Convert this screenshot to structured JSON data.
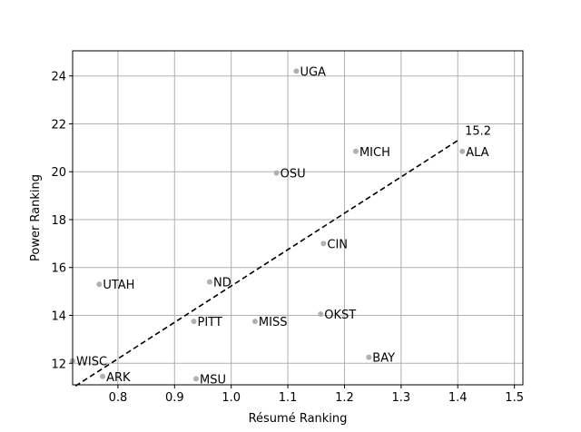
{
  "chart_data": {
    "type": "scatter",
    "title": "",
    "xlabel": "Résumé Ranking",
    "ylabel": "Power Ranking",
    "xlim": [
      0.72,
      1.515
    ],
    "ylim": [
      11.1,
      25.05
    ],
    "x_ticks": [
      0.8,
      0.9,
      1.0,
      1.1,
      1.2,
      1.3,
      1.4,
      1.5
    ],
    "x_tick_labels": [
      "0.8",
      "0.9",
      "1.0",
      "1.1",
      "1.2",
      "1.3",
      "1.4",
      "1.5"
    ],
    "y_ticks": [
      12,
      14,
      16,
      18,
      20,
      22,
      24
    ],
    "y_tick_labels": [
      "12",
      "14",
      "16",
      "18",
      "20",
      "22",
      "24"
    ],
    "grid": true,
    "point_color": "#b0b0b0",
    "points": [
      {
        "label": "UGA",
        "x": 1.115,
        "y": 24.2
      },
      {
        "label": "MICH",
        "x": 1.22,
        "y": 20.85
      },
      {
        "label": "ALA",
        "x": 1.408,
        "y": 20.85
      },
      {
        "label": "OSU",
        "x": 1.08,
        "y": 19.95
      },
      {
        "label": "CIN",
        "x": 1.163,
        "y": 17.0
      },
      {
        "label": "ND",
        "x": 0.962,
        "y": 15.4
      },
      {
        "label": "UTAH",
        "x": 0.767,
        "y": 15.3
      },
      {
        "label": "OKST",
        "x": 1.158,
        "y": 14.05
      },
      {
        "label": "MISS",
        "x": 1.042,
        "y": 13.75
      },
      {
        "label": "PITT",
        "x": 0.934,
        "y": 13.75
      },
      {
        "label": "BAY",
        "x": 1.243,
        "y": 12.25
      },
      {
        "label": "WISC",
        "x": 0.72,
        "y": 12.1
      },
      {
        "label": "ARK",
        "x": 0.773,
        "y": 11.45
      },
      {
        "label": "MSU",
        "x": 0.938,
        "y": 11.35
      }
    ],
    "trend_line": {
      "style": "dashed",
      "color": "#000000",
      "x": [
        0.725,
        1.403
      ],
      "y": [
        11.05,
        21.35
      ],
      "end_label": "15.2"
    }
  }
}
